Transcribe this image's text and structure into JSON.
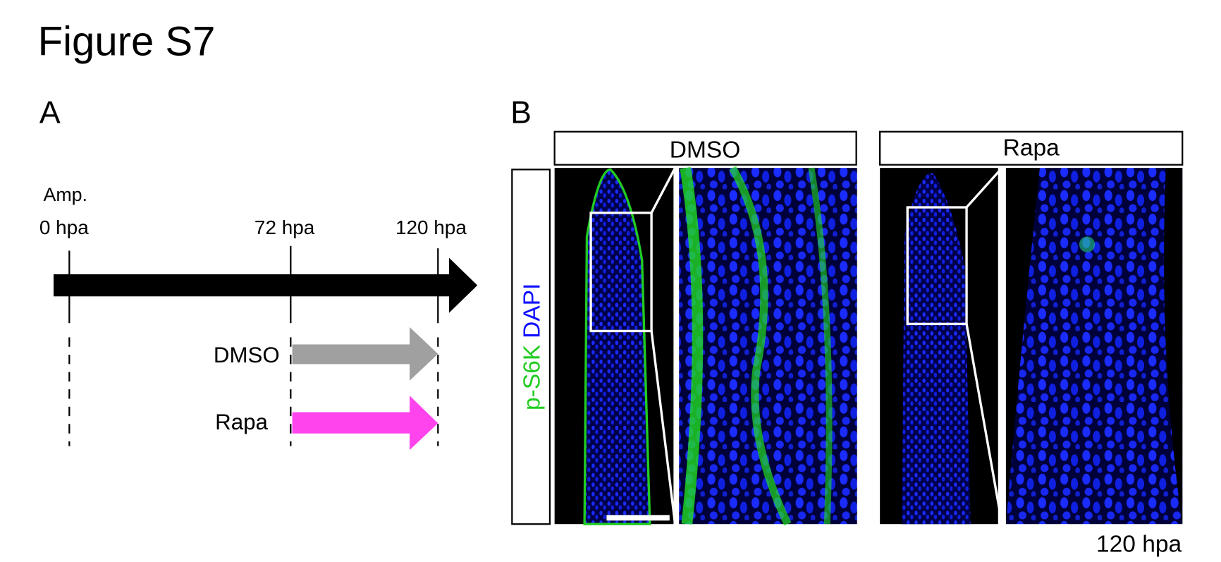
{
  "figure": {
    "title": "Figure S7",
    "panel_a": {
      "label": "A",
      "amputation": "Amp.",
      "timepoints": [
        "0 hpa",
        "72 hpa",
        "120 hpa"
      ],
      "treatments": [
        "DMSO",
        "Rapa"
      ]
    },
    "panel_b": {
      "label": "B",
      "columns": [
        "DMSO",
        "Rapa"
      ],
      "stain": {
        "marker": "p-S6K",
        "counterstain": "DAPI"
      },
      "timepoint": "120 hpa"
    }
  }
}
